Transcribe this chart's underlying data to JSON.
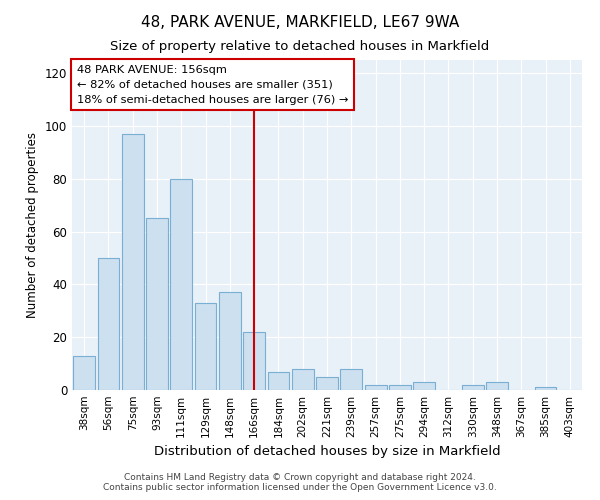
{
  "title": "48, PARK AVENUE, MARKFIELD, LE67 9WA",
  "subtitle": "Size of property relative to detached houses in Markfield",
  "xlabel": "Distribution of detached houses by size in Markfield",
  "ylabel": "Number of detached properties",
  "categories": [
    "38sqm",
    "56sqm",
    "75sqm",
    "93sqm",
    "111sqm",
    "129sqm",
    "148sqm",
    "166sqm",
    "184sqm",
    "202sqm",
    "221sqm",
    "239sqm",
    "257sqm",
    "275sqm",
    "294sqm",
    "312sqm",
    "330sqm",
    "348sqm",
    "367sqm",
    "385sqm",
    "403sqm"
  ],
  "bar_heights": [
    13,
    50,
    97,
    65,
    80,
    33,
    37,
    22,
    7,
    8,
    5,
    8,
    2,
    2,
    3,
    0,
    2,
    3,
    0,
    1,
    0
  ],
  "bar_color": "#cce0f0",
  "bar_edge_color": "#7aafd4",
  "vline_color": "#cc0000",
  "vline_pos": 7.0,
  "ylim": [
    0,
    125
  ],
  "yticks": [
    0,
    20,
    40,
    60,
    80,
    100,
    120
  ],
  "annotation_title": "48 PARK AVENUE: 156sqm",
  "annotation_line1": "← 82% of detached houses are smaller (351)",
  "annotation_line2": "18% of semi-detached houses are larger (76) →",
  "footer1": "Contains HM Land Registry data © Crown copyright and database right 2024.",
  "footer2": "Contains public sector information licensed under the Open Government Licence v3.0.",
  "bg_color": "#ffffff",
  "plot_bg_color": "#e8f0f8"
}
